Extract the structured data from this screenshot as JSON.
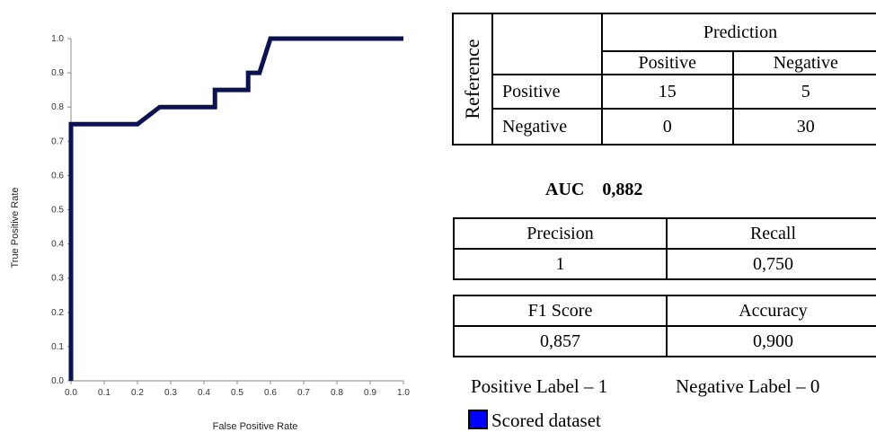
{
  "chart_data": {
    "type": "line",
    "title": "",
    "xlabel": "False Positive Rate",
    "ylabel": "True Positive Rate",
    "xlim": [
      0,
      1
    ],
    "ylim": [
      0,
      1
    ],
    "x_ticks": [
      "0.0",
      "0.1",
      "0.2",
      "0.3",
      "0.4",
      "0.5",
      "0.6",
      "0.7",
      "0.8",
      "0.9",
      "1.0"
    ],
    "y_ticks": [
      "0.0",
      "0.1",
      "0.2",
      "0.3",
      "0.4",
      "0.5",
      "0.6",
      "0.7",
      "0.8",
      "0.9",
      "1.0"
    ],
    "series": [
      {
        "color": "#0a1250",
        "x": [
          0,
          0,
          0.2,
          0.267,
          0.433,
          0.433,
          0.533,
          0.533,
          0.567,
          0.6,
          1.0
        ],
        "y": [
          0,
          0.75,
          0.75,
          0.8,
          0.8,
          0.85,
          0.85,
          0.9,
          0.9,
          1.0,
          1.0
        ]
      }
    ],
    "grid": false
  },
  "confusion": {
    "reference_label": "Reference",
    "prediction_label": "Prediction",
    "col_positive": "Positive",
    "col_negative": "Negative",
    "row_positive": "Positive",
    "row_negative": "Negative",
    "tp": "15",
    "fn": "5",
    "fp": "0",
    "tn": "30"
  },
  "auc": {
    "label": "AUC",
    "value": "0,882"
  },
  "metrics": {
    "precision_label": "Precision",
    "precision": "1",
    "recall_label": "Recall",
    "recall": "0,750",
    "f1_label": "F1 Score",
    "f1": "0,857",
    "accuracy_label": "Accuracy",
    "accuracy": "0,900"
  },
  "labels": {
    "positive": "Positive Label – 1",
    "negative": "Negative Label – 0"
  },
  "legend": {
    "label": "Scored dataset",
    "color": "#0000ff"
  }
}
